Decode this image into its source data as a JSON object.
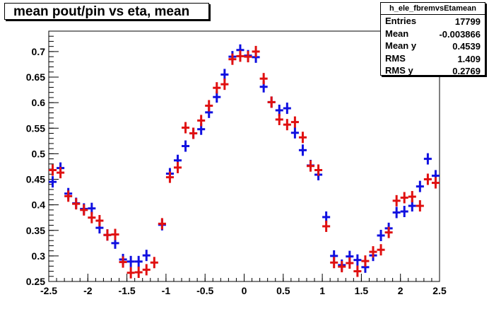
{
  "title": "mean pout/pin vs eta, mean",
  "stats": {
    "name": "h_ele_fbremvsEtamean",
    "rows": [
      {
        "label": "Entries",
        "value": "17799"
      },
      {
        "label": "Mean",
        "value": "-0.003866"
      },
      {
        "label": "Mean y",
        "value": "0.4539"
      },
      {
        "label": "RMS",
        "value": "1.409"
      },
      {
        "label": "RMS y",
        "value": "0.2769"
      }
    ]
  },
  "chart_data": {
    "type": "scatter",
    "xlim": [
      -2.5,
      2.5
    ],
    "ylim": [
      0.25,
      0.74
    ],
    "xticks": [
      -2.5,
      -2,
      -1.5,
      -1,
      -0.5,
      0,
      0.5,
      1,
      1.5,
      2,
      2.5
    ],
    "xtick_labels": [
      "-2.5",
      "-2",
      "-1.5",
      "-1",
      "-0.5",
      "0",
      "0.5",
      "1",
      "1.5",
      "2",
      "2.5"
    ],
    "yticks": [
      0.25,
      0.3,
      0.35,
      0.4,
      0.45,
      0.5,
      0.55,
      0.6,
      0.65,
      0.7
    ],
    "ytick_labels": [
      "0.25",
      "0.3",
      "0.35",
      "0.4",
      "0.45",
      "0.5",
      "0.55",
      "0.6",
      "0.65",
      "0.7"
    ],
    "x": [
      -2.45,
      -2.35,
      -2.25,
      -2.15,
      -2.05,
      -1.95,
      -1.85,
      -1.75,
      -1.65,
      -1.55,
      -1.45,
      -1.35,
      -1.25,
      -1.15,
      -1.05,
      -0.95,
      -0.85,
      -0.75,
      -0.65,
      -0.55,
      -0.45,
      -0.35,
      -0.25,
      -0.15,
      -0.05,
      0.05,
      0.15,
      0.25,
      0.35,
      0.45,
      0.55,
      0.65,
      0.75,
      0.85,
      0.95,
      1.05,
      1.15,
      1.25,
      1.35,
      1.45,
      1.55,
      1.65,
      1.75,
      1.85,
      1.95,
      2.05,
      2.15,
      2.25,
      2.35,
      2.45
    ],
    "series": [
      {
        "color": "#1010e0",
        "values": [
          0.445,
          0.472,
          0.422,
          0.403,
          0.392,
          0.393,
          0.355,
          0.341,
          0.325,
          0.293,
          0.289,
          0.289,
          0.301,
          null,
          0.361,
          0.461,
          0.487,
          0.515,
          0.54,
          0.548,
          0.581,
          0.611,
          0.655,
          0.69,
          0.703,
          0.692,
          0.689,
          0.631,
          0.601,
          0.585,
          0.589,
          0.541,
          0.507,
          0.477,
          0.459,
          0.376,
          0.3,
          0.282,
          0.299,
          0.292,
          0.278,
          0.301,
          0.34,
          0.354,
          0.385,
          0.387,
          0.398,
          0.436,
          0.49,
          0.457
        ]
      },
      {
        "color": "#e01010",
        "values": [
          0.468,
          0.463,
          0.417,
          0.402,
          0.39,
          0.375,
          0.369,
          0.341,
          0.342,
          0.288,
          0.267,
          0.268,
          0.273,
          0.287,
          0.363,
          0.454,
          0.473,
          0.551,
          0.54,
          0.565,
          0.594,
          0.629,
          0.636,
          0.685,
          0.691,
          0.69,
          0.7,
          0.647,
          0.601,
          0.567,
          0.557,
          0.562,
          0.532,
          0.476,
          0.468,
          0.358,
          0.287,
          0.279,
          0.286,
          0.27,
          0.29,
          0.308,
          0.312,
          0.346,
          0.408,
          0.414,
          0.416,
          0.398,
          0.45,
          0.443
        ]
      }
    ]
  }
}
